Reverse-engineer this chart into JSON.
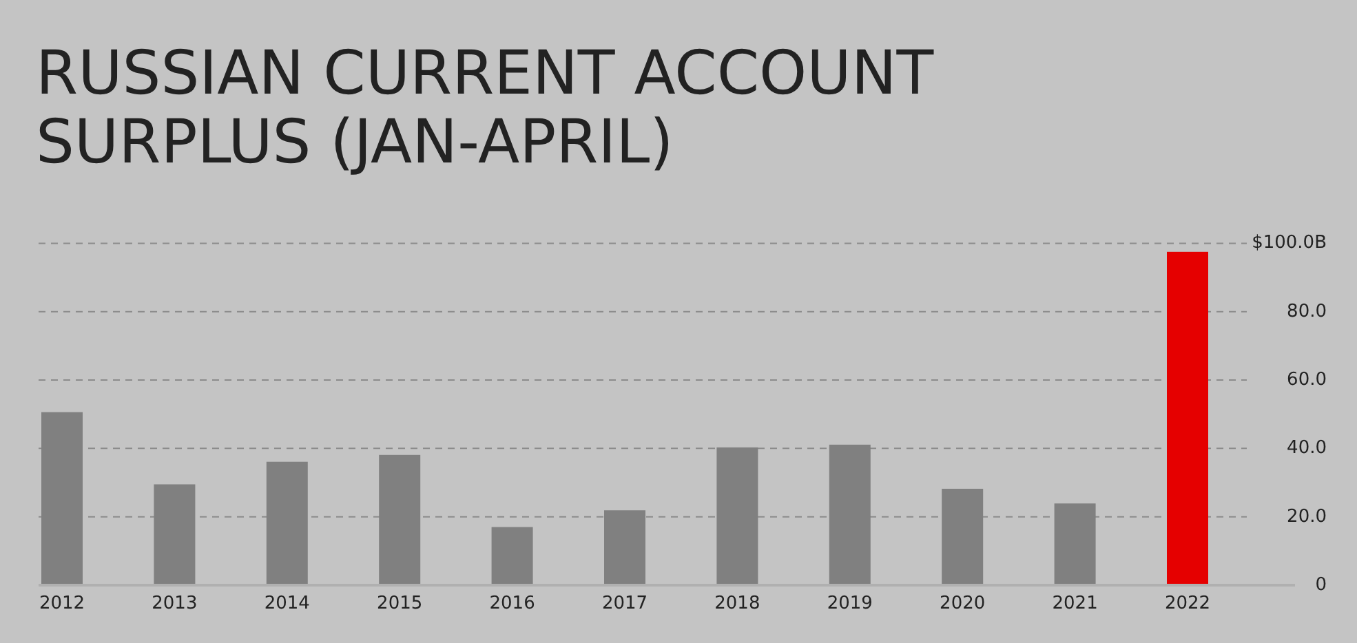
{
  "chart_data": {
    "type": "bar",
    "title": "RUSSIAN CURRENT ACCOUNT\nSURPLUS (JAN-APRIL)",
    "categories": [
      "2012",
      "2013",
      "2014",
      "2015",
      "2016",
      "2017",
      "2018",
      "2019",
      "2020",
      "2021",
      "2022"
    ],
    "values": [
      50.6,
      29.5,
      36.1,
      38.1,
      17.0,
      21.9,
      40.3,
      41.1,
      28.2,
      23.9,
      97.5
    ],
    "colors": [
      "#808080",
      "#808080",
      "#808080",
      "#808080",
      "#808080",
      "#808080",
      "#808080",
      "#808080",
      "#808080",
      "#808080",
      "#e50000"
    ],
    "ylim": [
      0,
      100
    ],
    "yticks": [
      {
        "value": 0,
        "label": "0"
      },
      {
        "value": 20,
        "label": "20.0"
      },
      {
        "value": 40,
        "label": "40.0"
      },
      {
        "value": 60,
        "label": "60.0"
      },
      {
        "value": 80,
        "label": "80.0"
      },
      {
        "value": 100,
        "label": "$100.0B"
      }
    ],
    "grid": "y"
  }
}
